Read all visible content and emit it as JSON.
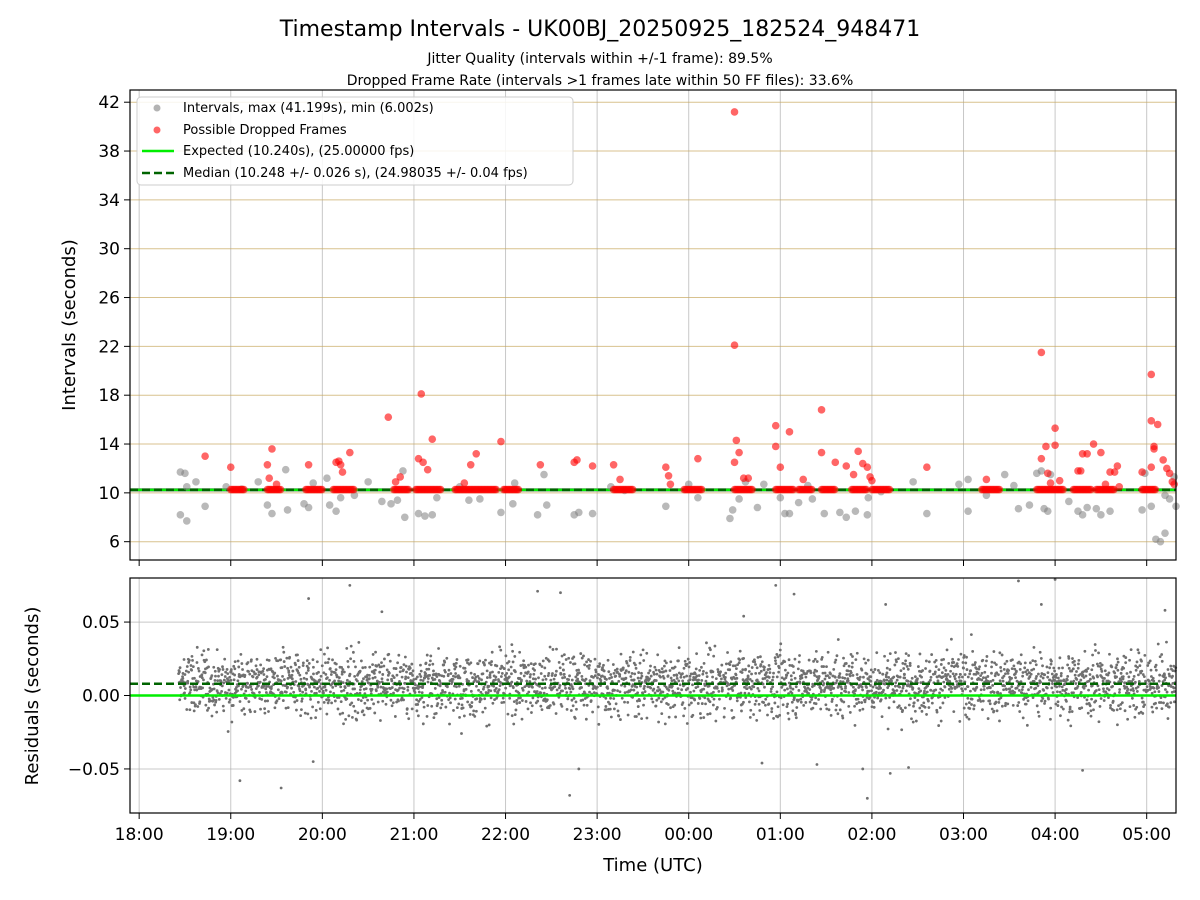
{
  "title": "Timestamp Intervals - UK00BJ_20250925_182524_948471",
  "subtitle_jitter": "Jitter Quality (intervals within +/-1 frame): 89.5%",
  "subtitle_dropped": "Dropped Frame Rate (intervals >1 frames late within 50 FF files): 33.6%",
  "chart_data": [
    {
      "type": "scatter",
      "panel": "intervals",
      "ylabel": "Intervals (seconds)",
      "xlabel": "",
      "xlim_hours": [
        17.9,
        29.32
      ],
      "ylim": [
        4.5,
        43
      ],
      "yticks": [
        6,
        10,
        14,
        18,
        22,
        26,
        30,
        34,
        38,
        42
      ],
      "xtick_hours": [
        18,
        19,
        20,
        21,
        22,
        23,
        24,
        25,
        26,
        27,
        28,
        29
      ],
      "grid": true,
      "legend_position": "top-left",
      "legend": [
        {
          "key": "intervals",
          "label": "Intervals, max (41.199s), min (6.002s)",
          "color": "#808080",
          "marker": "circle"
        },
        {
          "key": "dropped",
          "label": "Possible Dropped Frames",
          "color": "#ff0000",
          "marker": "circle"
        },
        {
          "key": "expected",
          "label": "Expected (10.240s), (25.00000 fps)",
          "color": "#00ee00",
          "style": "solid"
        },
        {
          "key": "median",
          "label": "Median (10.248 +/- 0.026 s), (24.98035 +/- 0.04 fps)",
          "color": "#006400",
          "style": "dashed"
        }
      ],
      "expected": 10.24,
      "median": 10.248,
      "series": [
        {
          "name": "Intervals",
          "color": "#808080",
          "points": [
            [
              18.45,
              11.7
            ],
            [
              18.5,
              11.6
            ],
            [
              18.52,
              10.5
            ],
            [
              18.45,
              8.2
            ],
            [
              18.52,
              7.7
            ],
            [
              18.62,
              10.9
            ],
            [
              18.72,
              8.9
            ],
            [
              18.95,
              10.5
            ],
            [
              19.12,
              10.3
            ],
            [
              19.3,
              10.9
            ],
            [
              19.4,
              9.0
            ],
            [
              19.45,
              8.3
            ],
            [
              19.6,
              11.9
            ],
            [
              19.62,
              8.6
            ],
            [
              19.8,
              9.1
            ],
            [
              19.85,
              8.8
            ],
            [
              19.9,
              10.8
            ],
            [
              20.05,
              11.2
            ],
            [
              20.08,
              9.0
            ],
            [
              20.15,
              8.5
            ],
            [
              20.2,
              9.6
            ],
            [
              20.35,
              9.8
            ],
            [
              20.5,
              10.9
            ],
            [
              20.65,
              9.3
            ],
            [
              20.75,
              9.1
            ],
            [
              20.82,
              9.4
            ],
            [
              20.88,
              11.8
            ],
            [
              20.9,
              8.0
            ],
            [
              21.05,
              8.3
            ],
            [
              21.12,
              8.1
            ],
            [
              21.2,
              8.2
            ],
            [
              21.25,
              9.6
            ],
            [
              21.5,
              10.5
            ],
            [
              21.6,
              9.4
            ],
            [
              21.72,
              9.5
            ],
            [
              21.95,
              8.4
            ],
            [
              22.08,
              9.1
            ],
            [
              22.1,
              10.8
            ],
            [
              22.35,
              8.2
            ],
            [
              22.42,
              11.5
            ],
            [
              22.45,
              9.0
            ],
            [
              22.75,
              8.2
            ],
            [
              22.8,
              8.4
            ],
            [
              22.95,
              8.3
            ],
            [
              23.15,
              10.5
            ],
            [
              23.3,
              10.2
            ],
            [
              23.75,
              8.9
            ],
            [
              24.0,
              10.7
            ],
            [
              24.1,
              9.6
            ],
            [
              24.45,
              7.9
            ],
            [
              24.48,
              8.6
            ],
            [
              24.55,
              9.5
            ],
            [
              24.62,
              10.9
            ],
            [
              24.75,
              8.8
            ],
            [
              24.82,
              10.7
            ],
            [
              25.0,
              9.6
            ],
            [
              25.05,
              8.3
            ],
            [
              25.1,
              8.3
            ],
            [
              25.2,
              9.2
            ],
            [
              25.3,
              10.6
            ],
            [
              25.35,
              9.5
            ],
            [
              25.48,
              8.3
            ],
            [
              25.65,
              8.4
            ],
            [
              25.72,
              8.0
            ],
            [
              25.82,
              8.5
            ],
            [
              25.95,
              8.2
            ],
            [
              25.96,
              9.6
            ],
            [
              26.1,
              10.1
            ],
            [
              26.45,
              10.9
            ],
            [
              26.6,
              8.3
            ],
            [
              26.95,
              10.7
            ],
            [
              27.05,
              11.1
            ],
            [
              27.05,
              8.5
            ],
            [
              27.25,
              9.8
            ],
            [
              27.45,
              11.5
            ],
            [
              27.55,
              10.6
            ],
            [
              27.6,
              8.7
            ],
            [
              27.72,
              9.0
            ],
            [
              27.8,
              11.6
            ],
            [
              27.85,
              11.8
            ],
            [
              27.88,
              8.7
            ],
            [
              27.92,
              8.5
            ],
            [
              27.95,
              11.5
            ],
            [
              28.15,
              9.3
            ],
            [
              28.25,
              8.5
            ],
            [
              28.3,
              8.2
            ],
            [
              28.35,
              8.8
            ],
            [
              28.45,
              8.7
            ],
            [
              28.5,
              8.2
            ],
            [
              28.6,
              8.5
            ],
            [
              28.95,
              8.6
            ],
            [
              28.98,
              11.6
            ],
            [
              29.05,
              8.9
            ],
            [
              29.1,
              6.2
            ],
            [
              29.15,
              6.0
            ],
            [
              29.2,
              6.7
            ],
            [
              29.2,
              9.8
            ],
            [
              29.25,
              9.5
            ],
            [
              29.3,
              11.3
            ],
            [
              29.32,
              8.9
            ]
          ]
        },
        {
          "name": "Possible Dropped Frames",
          "color": "#ff0000",
          "points": [
            [
              18.72,
              13.0
            ],
            [
              19.0,
              12.1
            ],
            [
              19.4,
              12.3
            ],
            [
              19.42,
              11.2
            ],
            [
              19.45,
              13.6
            ],
            [
              19.5,
              10.7
            ],
            [
              19.85,
              12.3
            ],
            [
              20.15,
              12.5
            ],
            [
              20.18,
              12.6
            ],
            [
              20.2,
              12.3
            ],
            [
              20.22,
              11.7
            ],
            [
              20.3,
              13.3
            ],
            [
              20.72,
              16.2
            ],
            [
              20.8,
              10.9
            ],
            [
              20.85,
              11.3
            ],
            [
              21.05,
              12.8
            ],
            [
              21.08,
              18.1
            ],
            [
              21.1,
              12.5
            ],
            [
              21.15,
              11.9
            ],
            [
              21.2,
              14.4
            ],
            [
              21.55,
              10.8
            ],
            [
              21.62,
              12.3
            ],
            [
              21.68,
              13.2
            ],
            [
              21.95,
              14.2
            ],
            [
              22.38,
              12.3
            ],
            [
              22.75,
              12.5
            ],
            [
              22.78,
              12.7
            ],
            [
              22.95,
              12.2
            ],
            [
              23.18,
              12.3
            ],
            [
              23.25,
              11.1
            ],
            [
              23.75,
              12.1
            ],
            [
              23.78,
              11.4
            ],
            [
              23.8,
              10.7
            ],
            [
              24.1,
              12.8
            ],
            [
              24.5,
              41.2
            ],
            [
              24.5,
              22.1
            ],
            [
              24.52,
              14.3
            ],
            [
              24.5,
              12.5
            ],
            [
              24.55,
              13.3
            ],
            [
              24.6,
              11.2
            ],
            [
              24.65,
              11.2
            ],
            [
              24.95,
              13.8
            ],
            [
              24.95,
              15.5
            ],
            [
              25.0,
              12.1
            ],
            [
              25.1,
              15.0
            ],
            [
              25.25,
              11.1
            ],
            [
              25.45,
              16.8
            ],
            [
              25.45,
              13.3
            ],
            [
              25.6,
              12.5
            ],
            [
              25.72,
              12.2
            ],
            [
              25.8,
              11.5
            ],
            [
              25.85,
              13.4
            ],
            [
              25.9,
              12.4
            ],
            [
              25.95,
              12.1
            ],
            [
              25.98,
              11.3
            ],
            [
              26.0,
              11.0
            ],
            [
              26.6,
              12.1
            ],
            [
              27.25,
              11.1
            ],
            [
              27.85,
              21.5
            ],
            [
              27.85,
              12.8
            ],
            [
              27.9,
              13.8
            ],
            [
              27.92,
              11.6
            ],
            [
              27.95,
              10.8
            ],
            [
              28.0,
              13.9
            ],
            [
              28.0,
              15.3
            ],
            [
              28.05,
              11.0
            ],
            [
              28.25,
              11.8
            ],
            [
              28.28,
              11.8
            ],
            [
              28.3,
              13.2
            ],
            [
              28.35,
              13.2
            ],
            [
              28.42,
              14.0
            ],
            [
              28.5,
              13.3
            ],
            [
              28.55,
              10.7
            ],
            [
              28.6,
              11.7
            ],
            [
              28.65,
              11.7
            ],
            [
              28.68,
              12.2
            ],
            [
              28.7,
              10.5
            ],
            [
              28.95,
              11.7
            ],
            [
              29.05,
              19.7
            ],
            [
              29.05,
              15.9
            ],
            [
              29.08,
              13.6
            ],
            [
              29.05,
              12.1
            ],
            [
              29.08,
              13.8
            ],
            [
              29.12,
              15.6
            ],
            [
              29.18,
              12.7
            ],
            [
              29.22,
              12.0
            ],
            [
              29.25,
              11.6
            ],
            [
              29.28,
              10.9
            ],
            [
              29.3,
              10.7
            ]
          ]
        }
      ]
    },
    {
      "type": "scatter",
      "panel": "residuals",
      "ylabel": "Residuals (seconds)",
      "xlabel": "Time (UTC)",
      "xlim_hours": [
        17.9,
        29.32
      ],
      "ylim": [
        -0.08,
        0.08
      ],
      "yticks": [
        -0.05,
        0.0,
        0.05
      ],
      "ytick_labels": [
        "−0.05",
        "0.00",
        "0.05"
      ],
      "xtick_hours": [
        18,
        19,
        20,
        21,
        22,
        23,
        24,
        25,
        26,
        27,
        28,
        29
      ],
      "xtick_labels": [
        "18:00",
        "19:00",
        "20:00",
        "21:00",
        "22:00",
        "23:00",
        "00:00",
        "01:00",
        "02:00",
        "03:00",
        "04:00",
        "05:00"
      ],
      "grid": true,
      "expected_residual": 0.0,
      "median_residual": 0.008,
      "point_color": "#707070",
      "x_start_hours": 18.43,
      "x_end_hours": 29.32,
      "point_count": 3300,
      "residual_center": 0.008,
      "residual_spread": 0.018,
      "outliers": [
        [
          19.1,
          -0.058
        ],
        [
          19.55,
          -0.063
        ],
        [
          19.85,
          0.066
        ],
        [
          19.9,
          -0.045
        ],
        [
          20.3,
          0.075
        ],
        [
          20.65,
          0.057
        ],
        [
          22.35,
          0.071
        ],
        [
          22.6,
          0.07
        ],
        [
          22.7,
          -0.068
        ],
        [
          22.8,
          -0.05
        ],
        [
          24.6,
          0.054
        ],
        [
          24.8,
          -0.046
        ],
        [
          24.95,
          0.075
        ],
        [
          25.15,
          0.069
        ],
        [
          25.4,
          -0.047
        ],
        [
          25.9,
          -0.05
        ],
        [
          25.95,
          -0.07
        ],
        [
          26.15,
          0.062
        ],
        [
          26.2,
          -0.053
        ],
        [
          26.4,
          -0.049
        ],
        [
          27.6,
          0.078
        ],
        [
          27.85,
          0.062
        ],
        [
          28.0,
          0.079
        ],
        [
          28.3,
          -0.051
        ],
        [
          29.2,
          0.058
        ]
      ]
    }
  ]
}
